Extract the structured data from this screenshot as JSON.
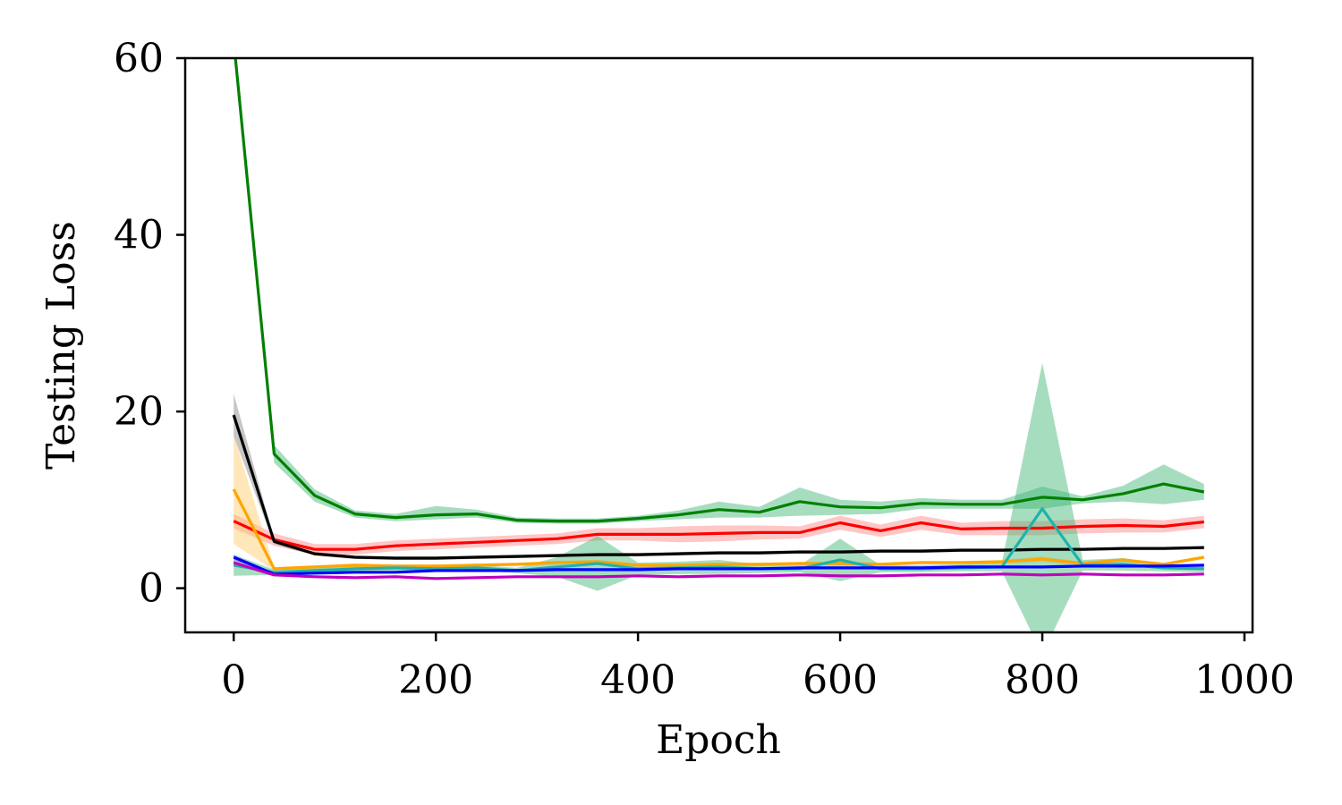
{
  "chart_data": {
    "type": "line",
    "title": "",
    "xlabel": "Epoch",
    "ylabel": "Testing Loss",
    "xlim": [
      -48,
      1008
    ],
    "ylim": [
      -5,
      60
    ],
    "xticks": [
      0,
      200,
      400,
      600,
      800,
      1000
    ],
    "yticks": [
      0,
      20,
      40,
      60
    ],
    "grid": false,
    "legend": "none",
    "x": [
      0,
      40,
      80,
      120,
      160,
      200,
      240,
      280,
      320,
      360,
      400,
      440,
      480,
      520,
      560,
      600,
      640,
      680,
      720,
      760,
      800,
      840,
      880,
      920,
      960
    ],
    "series": [
      {
        "color": "#008000",
        "band_color": "#3cb371",
        "values": [
          62,
          15.2,
          10.5,
          8.4,
          8.0,
          8.3,
          8.4,
          7.7,
          7.6,
          7.6,
          7.9,
          8.3,
          8.9,
          8.6,
          9.8,
          9.2,
          9.1,
          9.6,
          9.5,
          9.5,
          10.3,
          10.0,
          10.7,
          11.8,
          10.9
        ],
        "lower": [
          62,
          14.2,
          9.8,
          8.0,
          7.6,
          7.8,
          8.0,
          7.4,
          7.3,
          7.3,
          7.6,
          7.8,
          8.0,
          8.0,
          8.2,
          8.3,
          8.4,
          9.0,
          9.0,
          9.0,
          9.0,
          9.6,
          9.8,
          9.5,
          10.0
        ],
        "upper": [
          62,
          16.2,
          11.2,
          8.8,
          8.4,
          9.3,
          8.9,
          8.0,
          7.9,
          7.9,
          8.2,
          8.8,
          9.8,
          9.2,
          11.4,
          10.0,
          9.8,
          10.2,
          10.0,
          10.0,
          11.5,
          10.4,
          11.6,
          14.0,
          11.8
        ]
      },
      {
        "color": "#ff0000",
        "band_color": "#ff8080",
        "values": [
          7.6,
          5.5,
          4.4,
          4.4,
          4.8,
          5.0,
          5.2,
          5.4,
          5.6,
          6.1,
          6.1,
          6.1,
          6.2,
          6.3,
          6.3,
          7.4,
          6.5,
          7.4,
          6.7,
          6.8,
          6.8,
          7.0,
          7.1,
          7.0,
          7.5
        ],
        "lower": [
          6.8,
          4.8,
          3.8,
          3.8,
          4.2,
          4.4,
          4.6,
          4.8,
          5.0,
          5.4,
          5.4,
          5.2,
          5.3,
          5.5,
          5.6,
          6.6,
          5.8,
          6.6,
          6.0,
          6.0,
          6.0,
          6.2,
          6.3,
          6.3,
          6.8
        ],
        "upper": [
          8.4,
          6.2,
          5.0,
          5.0,
          5.4,
          5.6,
          5.8,
          6.0,
          6.2,
          6.8,
          6.8,
          7.0,
          7.1,
          7.1,
          7.0,
          8.2,
          7.2,
          8.2,
          7.4,
          7.6,
          7.6,
          7.8,
          7.9,
          7.7,
          8.2
        ]
      },
      {
        "color": "#000000",
        "band_color": "#808080",
        "values": [
          19.6,
          5.3,
          3.9,
          3.5,
          3.4,
          3.4,
          3.5,
          3.6,
          3.7,
          3.8,
          3.8,
          3.9,
          4.0,
          4.0,
          4.1,
          4.1,
          4.2,
          4.2,
          4.3,
          4.3,
          4.4,
          4.4,
          4.5,
          4.5,
          4.6
        ],
        "lower": [
          17.2,
          5.0,
          3.7,
          3.3,
          3.2,
          3.2,
          3.3,
          3.4,
          3.5,
          3.6,
          3.6,
          3.7,
          3.8,
          3.8,
          3.9,
          3.9,
          4.0,
          4.0,
          4.1,
          4.1,
          4.2,
          4.2,
          4.3,
          4.3,
          4.4
        ],
        "upper": [
          22.0,
          5.6,
          4.1,
          3.7,
          3.6,
          3.6,
          3.7,
          3.8,
          3.9,
          4.0,
          4.0,
          4.1,
          4.2,
          4.2,
          4.3,
          4.3,
          4.4,
          4.4,
          4.5,
          4.5,
          4.6,
          4.6,
          4.7,
          4.7,
          4.8
        ]
      },
      {
        "color": "#ffa500",
        "band_color": "#ffc966",
        "values": [
          11.2,
          2.2,
          2.4,
          2.6,
          2.5,
          2.5,
          2.6,
          2.7,
          2.9,
          3.0,
          2.6,
          2.6,
          2.7,
          2.7,
          2.8,
          2.8,
          2.7,
          2.9,
          2.9,
          3.0,
          3.3,
          2.8,
          3.2,
          2.7,
          3.5
        ],
        "lower": [
          5.0,
          2.0,
          2.2,
          2.4,
          2.3,
          2.3,
          2.4,
          2.5,
          2.7,
          2.8,
          2.4,
          2.4,
          2.5,
          2.5,
          2.6,
          2.6,
          2.5,
          2.7,
          2.7,
          2.8,
          3.0,
          2.6,
          3.0,
          2.5,
          3.3
        ],
        "upper": [
          17.4,
          2.4,
          2.6,
          2.8,
          2.7,
          2.7,
          2.8,
          2.9,
          3.1,
          3.2,
          2.8,
          2.8,
          2.9,
          2.9,
          3.0,
          3.0,
          2.9,
          3.1,
          3.1,
          3.2,
          3.6,
          3.0,
          3.4,
          2.9,
          3.7
        ]
      },
      {
        "color": "#20b2aa",
        "band_color": "#3cb371",
        "values": [
          2.6,
          1.8,
          2.0,
          2.2,
          2.3,
          2.2,
          2.3,
          2.0,
          2.4,
          2.8,
          2.2,
          2.3,
          2.4,
          2.2,
          2.2,
          3.2,
          2.2,
          2.2,
          2.3,
          2.4,
          9.0,
          2.6,
          2.7,
          2.3,
          2.2
        ],
        "lower": [
          1.4,
          1.5,
          1.7,
          1.9,
          2.0,
          1.9,
          2.0,
          1.7,
          1.3,
          -0.3,
          1.5,
          1.6,
          1.6,
          1.7,
          1.8,
          0.8,
          1.8,
          1.8,
          1.9,
          1.9,
          -7.5,
          2.0,
          2.0,
          1.9,
          1.8
        ],
        "upper": [
          3.8,
          2.1,
          2.3,
          2.5,
          2.6,
          2.5,
          2.6,
          2.3,
          3.5,
          5.9,
          2.9,
          3.0,
          3.2,
          2.7,
          2.6,
          5.6,
          2.6,
          2.6,
          2.7,
          2.9,
          25.5,
          3.2,
          3.4,
          2.7,
          2.6
        ]
      },
      {
        "color": "#0000ff",
        "band_color": "#8080ff",
        "values": [
          3.5,
          1.6,
          1.7,
          1.8,
          1.8,
          2.0,
          2.0,
          2.0,
          2.1,
          2.1,
          2.1,
          2.2,
          2.2,
          2.2,
          2.3,
          2.3,
          2.3,
          2.3,
          2.4,
          2.4,
          2.4,
          2.5,
          2.5,
          2.5,
          2.6
        ],
        "lower": [
          3.2,
          1.5,
          1.6,
          1.7,
          1.7,
          1.9,
          1.9,
          1.9,
          2.0,
          2.0,
          2.0,
          2.1,
          2.1,
          2.1,
          2.2,
          2.2,
          2.2,
          2.2,
          2.3,
          2.3,
          2.3,
          2.4,
          2.4,
          2.4,
          2.5
        ],
        "upper": [
          3.8,
          1.7,
          1.8,
          1.9,
          1.9,
          2.1,
          2.1,
          2.1,
          2.2,
          2.2,
          2.2,
          2.3,
          2.3,
          2.3,
          2.4,
          2.4,
          2.4,
          2.4,
          2.5,
          2.5,
          2.5,
          2.6,
          2.6,
          2.6,
          2.7
        ]
      },
      {
        "color": "#bf00bf",
        "band_color": "#e080e0",
        "values": [
          2.9,
          1.5,
          1.3,
          1.2,
          1.3,
          1.1,
          1.2,
          1.3,
          1.3,
          1.3,
          1.4,
          1.3,
          1.4,
          1.4,
          1.5,
          1.4,
          1.4,
          1.5,
          1.5,
          1.6,
          1.5,
          1.6,
          1.5,
          1.5,
          1.6
        ],
        "lower": [
          2.6,
          1.4,
          1.2,
          1.1,
          1.2,
          1.0,
          1.1,
          1.2,
          1.2,
          1.2,
          1.3,
          1.2,
          1.3,
          1.3,
          1.4,
          1.3,
          1.3,
          1.4,
          1.4,
          1.5,
          1.4,
          1.5,
          1.4,
          1.4,
          1.5
        ],
        "upper": [
          3.2,
          1.6,
          1.4,
          1.3,
          1.4,
          1.2,
          1.3,
          1.4,
          1.4,
          1.4,
          1.5,
          1.4,
          1.5,
          1.5,
          1.6,
          1.5,
          1.5,
          1.6,
          1.6,
          1.7,
          1.6,
          1.7,
          1.6,
          1.6,
          1.7
        ]
      }
    ]
  }
}
